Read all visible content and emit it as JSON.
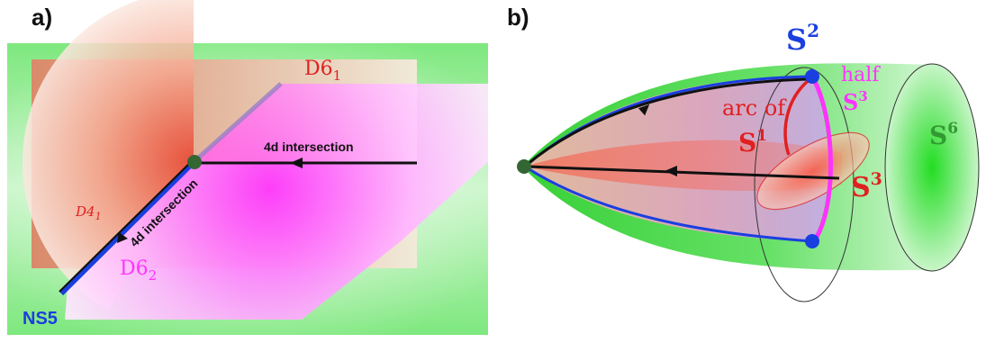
{
  "panel_a": {
    "label": "a)",
    "labels": {
      "d6_1": "D6",
      "d6_1_sub": "1",
      "d6_2": "D6",
      "d6_2_sub": "2",
      "d4_1": "D4",
      "d4_1_sub": "1",
      "ns5": "NS5",
      "intersection_horizontal": "4d intersection",
      "intersection_diagonal": "4d intersection"
    }
  },
  "panel_b": {
    "label": "b)",
    "labels": {
      "s2": "S",
      "s2_sup": "2",
      "half": "half",
      "half_s3": "S",
      "half_s3_sup": "3",
      "arc_of": "arc of",
      "s1": "S",
      "s1_sup": "1",
      "s3": "S",
      "s3_sup": "3",
      "s6": "S",
      "s6_sup": "6"
    }
  },
  "colors": {
    "ns5_blue": "#1a3fe0",
    "d6_red": "#e02020",
    "magenta": "#ff33ff",
    "green": "#33dd33",
    "dark_green_node": "#336633",
    "s6_green": "#339933"
  }
}
